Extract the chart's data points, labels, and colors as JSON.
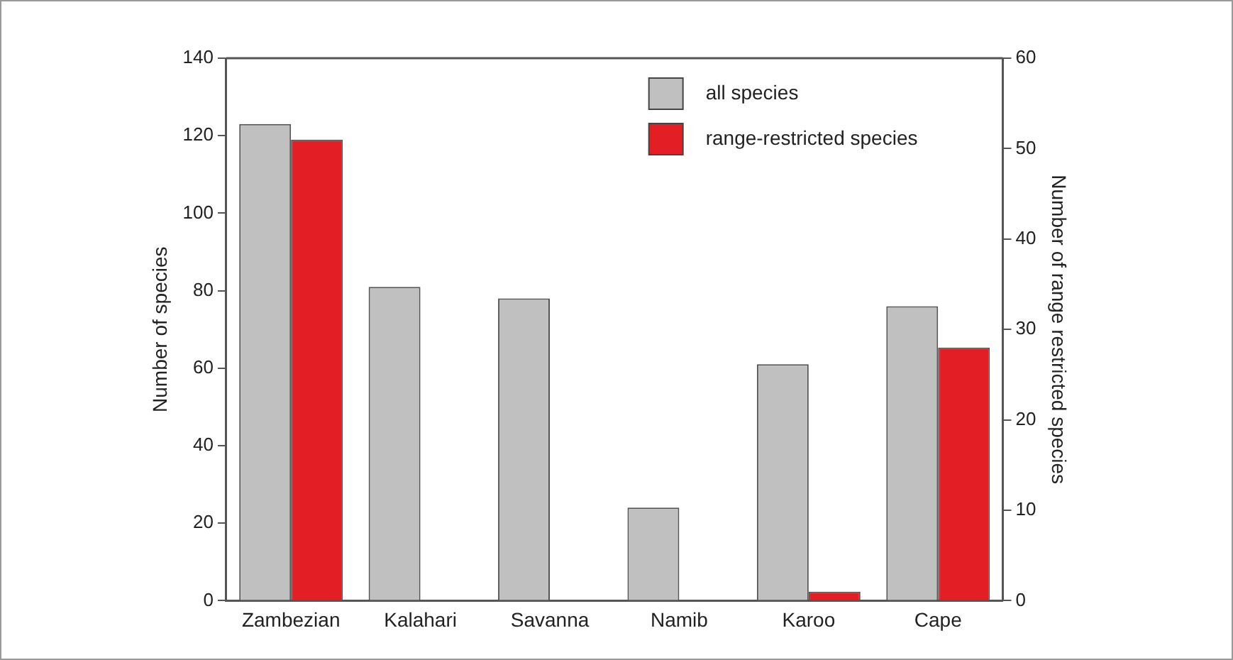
{
  "chart_data": {
    "type": "bar",
    "categories": [
      "Zambezian",
      "Kalahari",
      "Savanna",
      "Namib",
      "Karoo",
      "Cape"
    ],
    "series": [
      {
        "name": "all species",
        "color": "#c0c0c0",
        "values": [
          123,
          81,
          78,
          24,
          61,
          76
        ]
      },
      {
        "name": "range-restricted species",
        "color": "#e31e24",
        "axis": "y2",
        "values": [
          51,
          0,
          0,
          0,
          1,
          28
        ]
      }
    ],
    "ylabel": "Number of species",
    "y2label": "Number of range restricted species",
    "ylim": [
      0,
      140
    ],
    "yticks": [
      0,
      20,
      40,
      60,
      80,
      100,
      120,
      140
    ],
    "y2lim": [
      0,
      60
    ],
    "y2ticks": [
      0,
      10,
      20,
      30,
      40,
      50,
      60
    ],
    "grid": false,
    "legend": "top right"
  }
}
